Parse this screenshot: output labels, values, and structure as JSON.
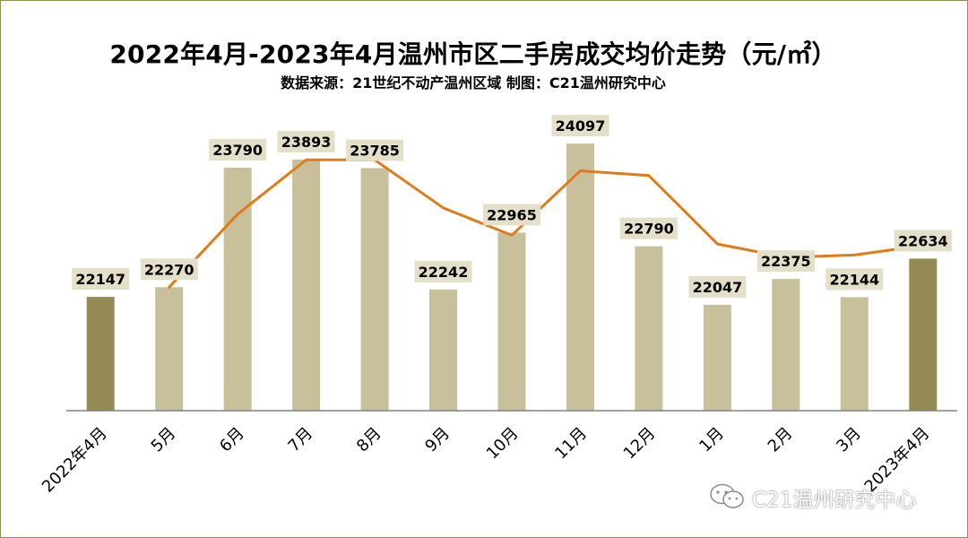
{
  "chart_data": {
    "type": "bar",
    "title": "2022年4月-2023年4月温州市区二手房成交均价走势（元/㎡）",
    "subtitle": "数据来源：21世纪不动产温州区域  制图：C21温州研究中心",
    "categories": [
      "2022年4月",
      "5月",
      "6月",
      "7月",
      "8月",
      "9月",
      "10月",
      "11月",
      "12月",
      "1月",
      "2月",
      "3月",
      "2023年4月"
    ],
    "series": [
      {
        "type": "bar",
        "values": [
          22147,
          22270,
          23790,
          23893,
          23785,
          22242,
          22965,
          24097,
          22790,
          22047,
          22375,
          22144,
          22634
        ]
      },
      {
        "type": "line",
        "values": [
          null,
          22270,
          23200,
          23890,
          23890,
          23280,
          22930,
          23750,
          23690,
          22820,
          22650,
          22680,
          22800
        ]
      }
    ],
    "highlight_categories": [
      "2022年4月",
      "2023年4月"
    ],
    "ylim": [
      20700,
      24600
    ],
    "grid": false,
    "legend": "none",
    "colors": {
      "bar": "#c8c09b",
      "bar_highlight": "#938b53",
      "line": "#e07b1a",
      "label_bg": "#e3dfc8",
      "axis": "#808080"
    }
  },
  "watermark": {
    "text": "C21温州研究中心",
    "icon": "wechat-icon"
  }
}
